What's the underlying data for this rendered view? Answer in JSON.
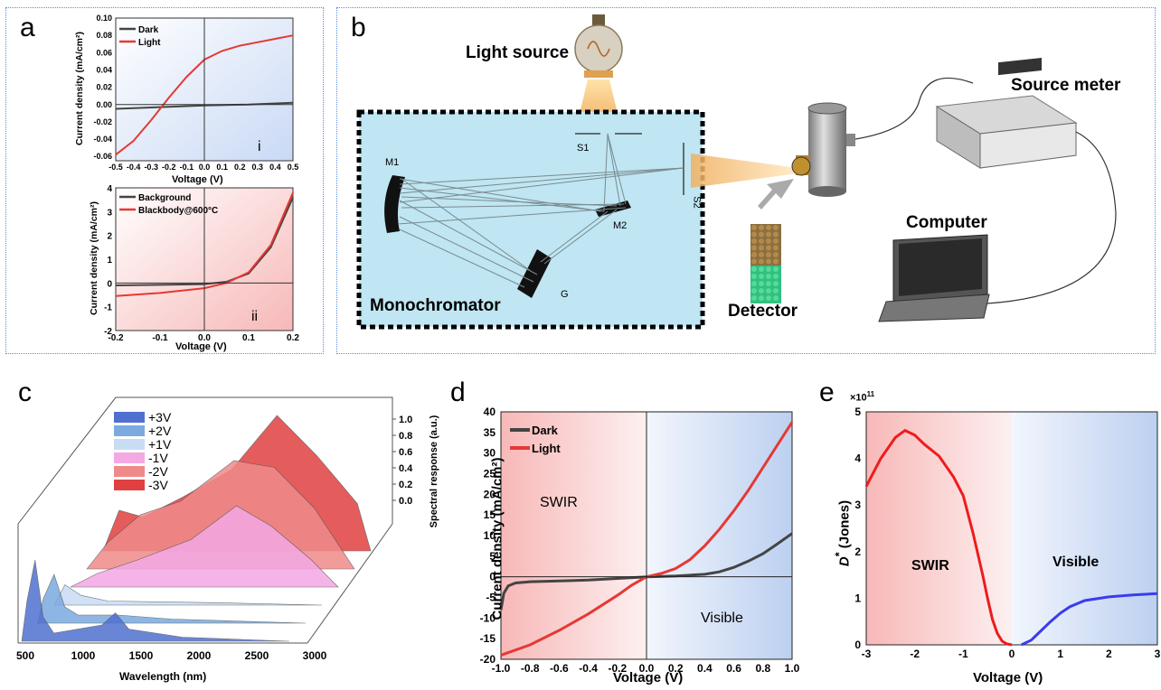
{
  "panel_labels": {
    "a": "a",
    "b": "b",
    "c": "c",
    "d": "d",
    "e": "e"
  },
  "panel_a": {
    "top": {
      "ylabel": "Current density (mA/cm²)",
      "xlabel": "Voltage (V)",
      "yticks": [
        "0.10",
        "0.08",
        "0.06",
        "0.04",
        "0.02",
        "0.00",
        "-0.02",
        "-0.04",
        "-0.06"
      ],
      "xticks": [
        "-0.5",
        "-0.4",
        "-0.3",
        "-0.2",
        "-0.1",
        "0.0",
        "0.1",
        "0.2",
        "0.3",
        "0.4",
        "0.5"
      ],
      "legend": [
        "Dark",
        "Light"
      ],
      "roman": "i"
    },
    "bottom": {
      "ylabel": "Current density (mA/cm²)",
      "xlabel": "Voltage (V)",
      "yticks": [
        "4",
        "3",
        "2",
        "1",
        "0",
        "-1",
        "-2"
      ],
      "xticks": [
        "-0.2",
        "-0.1",
        "0.0",
        "0.1",
        "0.2"
      ],
      "legend": [
        "Background",
        "Blackbody@600°C"
      ],
      "roman": "ii"
    }
  },
  "panel_b": {
    "light_source": "Light source",
    "source_meter": "Source meter",
    "computer": "Computer",
    "detector": "Detector",
    "monochromator": "Monochromator",
    "m1": "M1",
    "m2": "M2",
    "s1": "S1",
    "s2": "S2",
    "g": "G"
  },
  "chart_data": [
    {
      "type": "line",
      "panel": "a-i",
      "xlabel": "Voltage (V)",
      "ylabel": "Current density (mA/cm²)",
      "xlim": [
        -0.5,
        0.5
      ],
      "ylim": [
        -0.065,
        0.1
      ],
      "series": [
        {
          "name": "Dark",
          "color": "#444444",
          "x": [
            -0.5,
            -0.25,
            0,
            0.25,
            0.5
          ],
          "y": [
            -0.005,
            -0.003,
            -0.001,
            0.0,
            0.002
          ]
        },
        {
          "name": "Light",
          "color": "#e53935",
          "x": [
            -0.5,
            -0.4,
            -0.3,
            -0.2,
            -0.1,
            0.0,
            0.1,
            0.2,
            0.3,
            0.4,
            0.5
          ],
          "y": [
            -0.058,
            -0.042,
            -0.018,
            0.008,
            0.032,
            0.052,
            0.062,
            0.068,
            0.072,
            0.076,
            0.08
          ]
        }
      ]
    },
    {
      "type": "line",
      "panel": "a-ii",
      "xlabel": "Voltage (V)",
      "ylabel": "Current density (mA/cm²)",
      "xlim": [
        -0.2,
        0.2
      ],
      "ylim": [
        -2,
        4
      ],
      "series": [
        {
          "name": "Background",
          "color": "#444444",
          "x": [
            -0.2,
            -0.1,
            0.0,
            0.05,
            0.1,
            0.15,
            0.2
          ],
          "y": [
            -0.1,
            -0.08,
            -0.05,
            0.05,
            0.4,
            1.5,
            3.6
          ]
        },
        {
          "name": "Blackbody@600°C",
          "color": "#e53935",
          "x": [
            -0.2,
            -0.1,
            0.0,
            0.05,
            0.1,
            0.15,
            0.2
          ],
          "y": [
            -0.55,
            -0.42,
            -0.22,
            0.0,
            0.45,
            1.6,
            3.8
          ]
        }
      ]
    },
    {
      "type": "area",
      "panel": "c",
      "xlabel": "Wavelength (nm)",
      "zlabel": "Spectral response (a.u.)",
      "xticks": [
        "500",
        "1000",
        "1500",
        "2000",
        "2500",
        "3000"
      ],
      "zticks": [
        "1.0",
        "0.8",
        "0.6",
        "0.4",
        "0.2",
        "0.0"
      ],
      "series": [
        {
          "name": "+3V",
          "color": "#5070d0"
        },
        {
          "name": "+2V",
          "color": "#7aaae0"
        },
        {
          "name": "+1V",
          "color": "#c8dcf4"
        },
        {
          "name": "-1V",
          "color": "#f4a8e4"
        },
        {
          "name": "-2V",
          "color": "#f08a8a"
        },
        {
          "name": "-3V",
          "color": "#e04040"
        }
      ]
    },
    {
      "type": "line",
      "panel": "d",
      "xlabel": "Voltage (V)",
      "ylabel": "Current density (mA/cm²)",
      "xlim": [
        -1,
        1
      ],
      "ylim": [
        -20,
        40
      ],
      "xticks": [
        "-1.0",
        "-0.8",
        "-0.6",
        "-0.4",
        "-0.2",
        "0.0",
        "0.2",
        "0.4",
        "0.6",
        "0.8",
        "1.0"
      ],
      "yticks": [
        "40",
        "35",
        "30",
        "25",
        "20",
        "15",
        "10",
        "5",
        "0",
        "-5",
        "-10",
        "-15",
        "-20"
      ],
      "region_labels": [
        "SWIR",
        "Visible"
      ],
      "series": [
        {
          "name": "Dark",
          "color": "#444444",
          "x": [
            -1,
            -0.98,
            -0.95,
            -0.9,
            -0.8,
            -0.6,
            -0.4,
            -0.2,
            0,
            0.2,
            0.4,
            0.5,
            0.6,
            0.7,
            0.8,
            0.9,
            1.0
          ],
          "y": [
            -8,
            -4,
            -2.2,
            -1.5,
            -1.2,
            -1.0,
            -0.8,
            -0.4,
            0,
            0.2,
            0.6,
            1.2,
            2.3,
            3.8,
            5.6,
            8.0,
            10.5
          ]
        },
        {
          "name": "Light",
          "color": "#e53935",
          "x": [
            -1,
            -0.8,
            -0.6,
            -0.4,
            -0.2,
            -0.1,
            0,
            0.1,
            0.2,
            0.3,
            0.4,
            0.5,
            0.6,
            0.7,
            0.8,
            0.9,
            1.0
          ],
          "y": [
            -19,
            -16.5,
            -13,
            -9,
            -4.5,
            -2,
            0,
            0.8,
            2,
            4.2,
            7.5,
            11.5,
            16,
            21,
            26.5,
            32,
            37.5
          ]
        }
      ]
    },
    {
      "type": "line",
      "panel": "e",
      "xlabel": "Voltage (V)",
      "ylabel": "D* (Jones)",
      "yscale_label": "×10",
      "yscale_exp": "11",
      "xlim": [
        -3,
        3
      ],
      "ylim": [
        0,
        5
      ],
      "xticks": [
        "-3",
        "-2",
        "-1",
        "0",
        "1",
        "2",
        "3"
      ],
      "yticks": [
        "5",
        "4",
        "3",
        "2",
        "1",
        "0"
      ],
      "region_labels": [
        "SWIR",
        "Visible"
      ],
      "series": [
        {
          "name": "SWIR",
          "color": "#ee1c1c",
          "x": [
            -3,
            -2.7,
            -2.4,
            -2.2,
            -2.0,
            -1.8,
            -1.5,
            -1.2,
            -1.0,
            -0.8,
            -0.6,
            -0.5,
            -0.4,
            -0.3,
            -0.2,
            -0.1,
            0
          ],
          "y": [
            3.4,
            4.0,
            4.45,
            4.6,
            4.5,
            4.3,
            4.05,
            3.6,
            3.2,
            2.4,
            1.5,
            1.0,
            0.55,
            0.25,
            0.08,
            0.02,
            0.0
          ]
        },
        {
          "name": "Visible",
          "color": "#3b3bef",
          "x": [
            0.2,
            0.4,
            0.6,
            0.8,
            1.0,
            1.2,
            1.5,
            2.0,
            2.5,
            3.0
          ],
          "y": [
            0.0,
            0.1,
            0.3,
            0.5,
            0.68,
            0.82,
            0.95,
            1.03,
            1.07,
            1.1
          ]
        }
      ]
    }
  ]
}
